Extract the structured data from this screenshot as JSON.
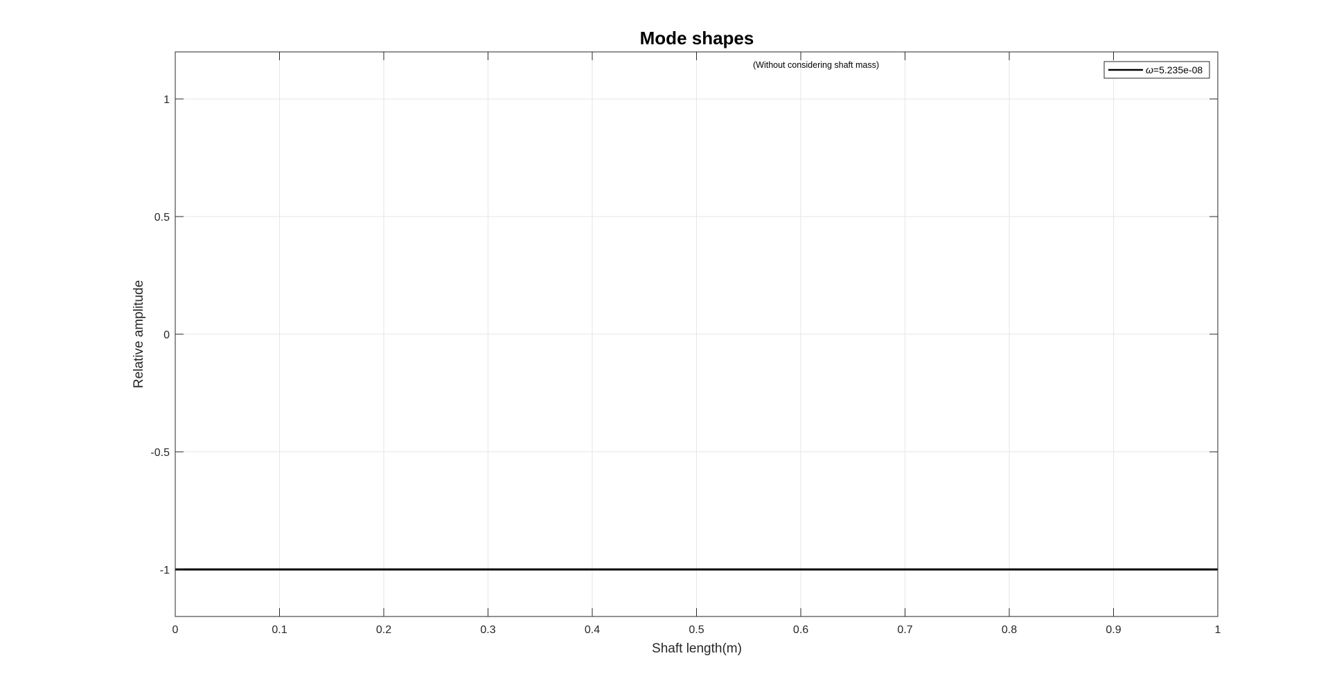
{
  "chart_data": {
    "type": "line",
    "title": "Mode shapes",
    "annotation": "(Without considering shaft mass)",
    "xlabel": "Shaft length(m)",
    "ylabel": "Relative amplitude",
    "xlim": [
      0,
      1
    ],
    "ylim": [
      -1.2,
      1.2
    ],
    "x_ticks": [
      0,
      0.1,
      0.2,
      0.3,
      0.4,
      0.5,
      0.6,
      0.7,
      0.8,
      0.9,
      1
    ],
    "x_tick_labels": [
      "0",
      "0.1",
      "0.2",
      "0.3",
      "0.4",
      "0.5",
      "0.6",
      "0.7",
      "0.8",
      "0.9",
      "1"
    ],
    "y_ticks": [
      -1,
      -0.5,
      0,
      0.5,
      1
    ],
    "y_tick_labels": [
      "-1",
      "-0.5",
      "0",
      "0.5",
      "1"
    ],
    "grid": true,
    "legend_position": "top-right",
    "legend_symbol": "ω",
    "legend_value": "=5.235e-08",
    "series": [
      {
        "name": "ω=5.235e-08",
        "color": "#000000",
        "x": [
          0,
          0.1,
          0.2,
          0.3,
          0.4,
          0.5,
          0.6,
          0.7,
          0.8,
          0.9,
          1
        ],
        "y": [
          -1,
          -1,
          -1,
          -1,
          -1,
          -1,
          -1,
          -1,
          -1,
          -1,
          -1
        ]
      }
    ]
  }
}
